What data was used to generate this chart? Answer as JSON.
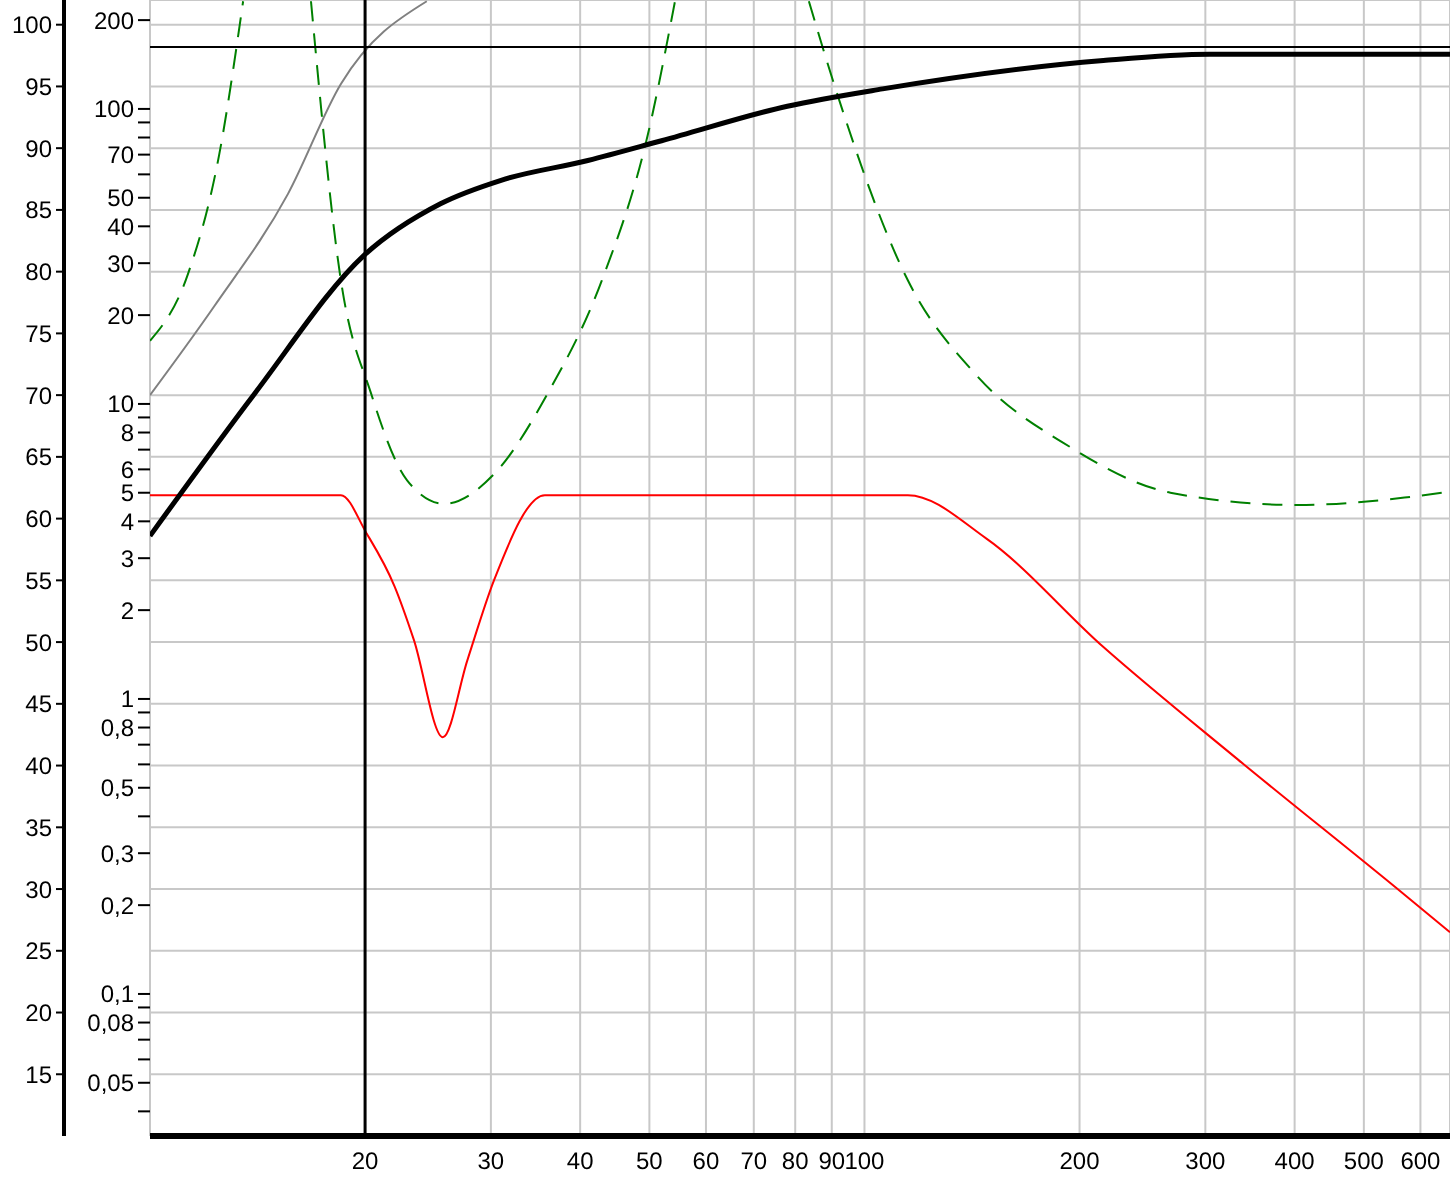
{
  "chart_data": {
    "type": "line",
    "log": "xy",
    "grid": true,
    "marker": "none",
    "xlim": [
      10,
      660
    ],
    "xticks": [
      20,
      30,
      40,
      50,
      60,
      70,
      80,
      90,
      100,
      200,
      300,
      400,
      500,
      600
    ],
    "y2lim": [
      10,
      102
    ],
    "y2ticks": [
      15,
      20,
      25,
      30,
      35,
      40,
      45,
      50,
      55,
      60,
      65,
      70,
      75,
      80,
      85,
      90,
      95,
      100
    ],
    "ylim": [
      0.033,
      234
    ],
    "yticks": [
      200,
      100,
      {
        "value": 90,
        "label": null
      },
      {
        "value": 80,
        "label": null
      },
      70,
      {
        "value": 60,
        "label": null
      },
      50,
      40,
      30,
      20,
      10,
      {
        "value": 9,
        "label": null
      },
      8,
      {
        "value": 7,
        "label": null
      },
      6,
      5,
      4,
      3,
      2,
      1,
      {
        "value": 0.9,
        "label": null
      },
      {
        "value": 0.8,
        "label": "0,8"
      },
      {
        "value": 0.7,
        "label": null
      },
      {
        "value": 0.6,
        "label": null
      },
      {
        "value": 0.5,
        "label": "0,5"
      },
      {
        "value": 0.4,
        "label": null
      },
      {
        "value": 0.3,
        "label": "0,3"
      },
      {
        "value": 0.2,
        "label": "0,2"
      },
      {
        "value": 0.1,
        "label": "0,1"
      },
      {
        "value": 0.09,
        "label": null
      },
      {
        "value": 0.08,
        "label": "0,08"
      },
      {
        "value": 0.07,
        "label": null
      },
      {
        "value": 0.06,
        "label": null
      },
      {
        "value": 0.05,
        "label": "0,05"
      },
      {
        "value": 0.04,
        "label": null
      }
    ],
    "series": [
      {
        "color": "#808080",
        "axis": "y2",
        "x": [
          10,
          12.3,
          15.6,
          18.5,
          24.4
        ],
        "values": [
          70,
          77.2,
          86.3,
          95.2,
          101.9
        ]
      },
      {
        "color": "#008000",
        "axis": "y2",
        "line_style": "dashed",
        "x": [
          10,
          11.3,
          12.5,
          13.5
        ],
        "values": [
          74.4,
          79.8,
          89.5,
          101.9
        ]
      },
      {
        "color": "#008000",
        "axis": "y2",
        "line_style": "dashed",
        "x": [
          16.8,
          18.5,
          20.4,
          22.9,
          25.8,
          30.3,
          36,
          42.9,
          49.8,
          54.3
        ],
        "values": [
          101.9,
          79.3,
          70.1,
          63.1,
          61.2,
          63.6,
          70.1,
          79.3,
          91.2,
          101.9
        ]
      },
      {
        "color": "#008000",
        "axis": "y2",
        "line_style": "dashed",
        "x": [
          83.6,
          91,
          115,
          143,
          194,
          268,
          404,
          570,
          660
        ],
        "values": [
          101.9,
          94.9,
          79.3,
          71.7,
          65.8,
          62.1,
          61.1,
          61.7,
          62.2
        ]
      },
      {
        "color": "#ff0000",
        "axis": "y2",
        "x": [
          10,
          18.5,
          20.1,
          22,
          23.4,
          25.7,
          27.8,
          30.3,
          35.7,
          115,
          148,
          216,
          333,
          552,
          660
        ],
        "values": [
          61.9,
          61.9,
          58.8,
          54.5,
          50.2,
          42.3,
          48.5,
          55,
          61.9,
          61.9,
          58.4,
          49.6,
          40.5,
          30.2,
          26.5
        ]
      },
      {
        "color": "#000000",
        "axis": "y2",
        "x": [
          10,
          14,
          20,
          25.5,
          31,
          41,
          52,
          78,
          106,
          216,
          304,
          660
        ],
        "values": [
          58.6,
          70.1,
          81.4,
          85.5,
          87.4,
          89,
          90.6,
          93.4,
          94.8,
          97.1,
          97.6,
          97.6
        ]
      }
    ],
    "ref_lines": [
      {
        "axis": "x",
        "value": 20,
        "color": "#000000"
      },
      {
        "axis": "y2",
        "value": 98.2,
        "color": "#000000"
      }
    ]
  }
}
